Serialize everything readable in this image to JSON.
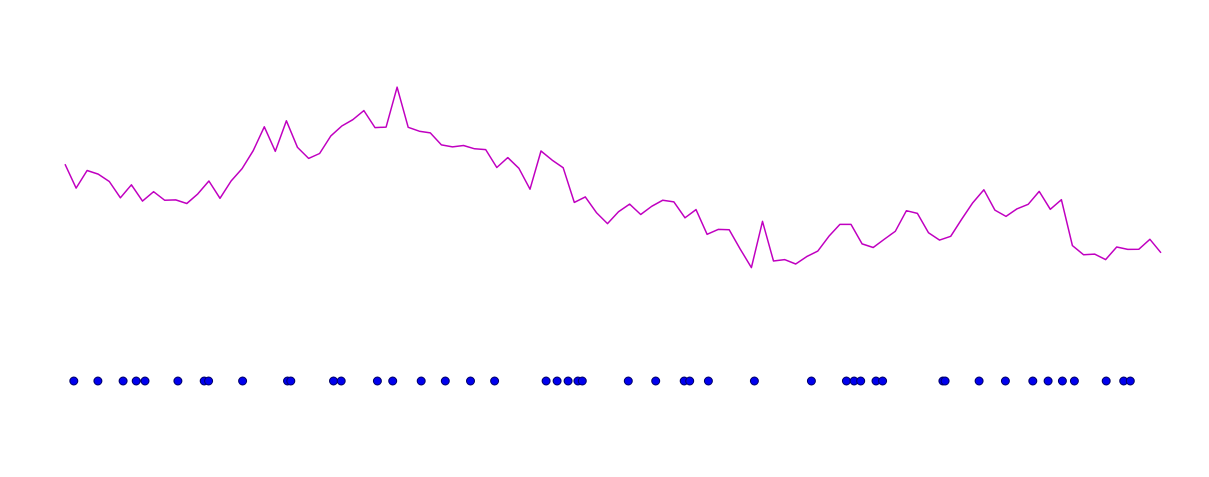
{
  "chart_data": {
    "type": "line",
    "title": "",
    "xlabel": "",
    "ylabel": "",
    "grid": false,
    "xlim": [
      0,
      100
    ],
    "ylim": [
      0,
      100
    ],
    "series": [
      {
        "type": "line",
        "color": "#c000c0",
        "values": [
          59.2,
          50.5,
          56.9,
          55.6,
          52.9,
          47.0,
          51.7,
          45.8,
          49.2,
          46.1,
          46.2,
          44.9,
          48.4,
          53.1,
          46.8,
          53.1,
          57.6,
          64.1,
          72.8,
          63.9,
          75.0,
          65.3,
          61.3,
          63.1,
          69.4,
          73.1,
          75.4,
          78.7,
          72.5,
          72.7,
          87.2,
          72.6,
          71.2,
          70.6,
          66.2,
          65.5,
          66.0,
          64.8,
          64.5,
          58.0,
          61.6,
          57.7,
          50.1,
          64.0,
          60.7,
          57.9,
          45.3,
          47.3,
          41.6,
          37.6,
          41.9,
          44.7,
          40.9,
          43.9,
          46.1,
          45.5,
          39.7,
          42.7,
          33.7,
          35.5,
          35.4,
          28.3,
          21.6,
          38.4,
          24.0,
          24.5,
          22.9,
          25.6,
          27.6,
          33.0,
          37.3,
          37.3,
          30.2,
          28.9,
          31.9,
          34.8,
          42.3,
          41.3,
          34.3,
          31.6,
          33.0,
          39.2,
          45.2,
          49.9,
          42.5,
          40.2,
          43.0,
          44.6,
          49.3,
          42.8,
          46.3,
          29.6,
          26.3,
          26.5,
          24.5,
          29.1,
          28.2,
          28.3,
          31.9,
          27.0
        ]
      },
      {
        "type": "scatter",
        "color": "#0000ee",
        "edge_color": "#000066",
        "y": 0,
        "x": [
          0.8,
          3.0,
          5.3,
          6.5,
          7.3,
          10.3,
          12.7,
          13.1,
          16.2,
          20.3,
          20.6,
          24.5,
          25.2,
          28.5,
          29.9,
          32.5,
          34.7,
          37.0,
          39.2,
          43.9,
          44.9,
          45.9,
          46.8,
          47.2,
          51.4,
          53.9,
          56.5,
          57.0,
          58.7,
          62.9,
          68.1,
          71.3,
          72.0,
          72.6,
          74.0,
          74.6,
          80.1,
          80.3,
          83.4,
          85.8,
          88.3,
          89.7,
          91.0,
          92.1,
          95.0,
          96.6,
          97.2
        ]
      }
    ]
  }
}
